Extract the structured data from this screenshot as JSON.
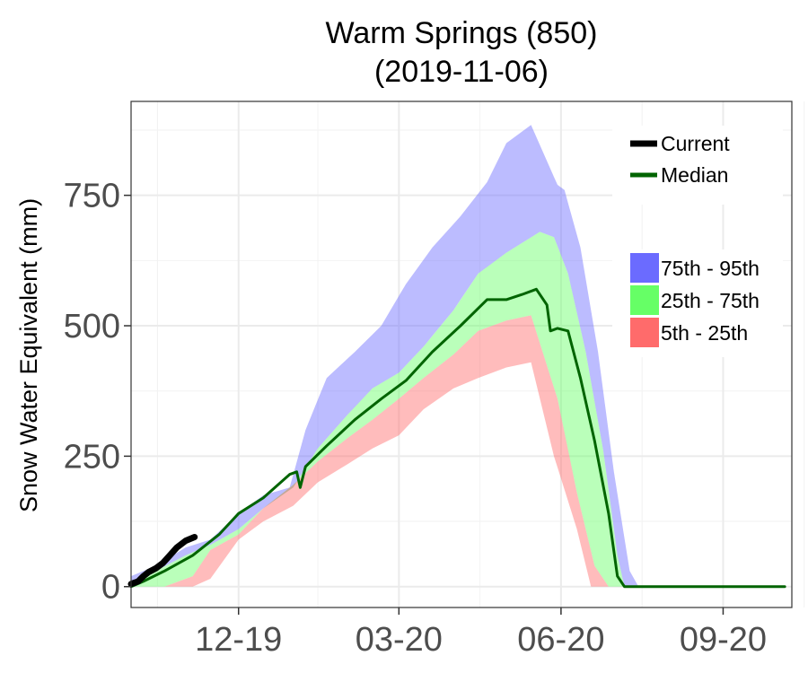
{
  "chart_data": {
    "type": "area",
    "title": "Warm Springs (850)",
    "subtitle": "(2019-11-06)",
    "ylabel": "Snow Water Equivalent (mm)",
    "xlabel": "",
    "x_axis": {
      "min": "2019-10-01",
      "max": "2020-10-10"
    },
    "ylim": [
      -40,
      930
    ],
    "x_ticks": [
      {
        "date": "2019-12-01",
        "label": "12-19"
      },
      {
        "date": "2020-03-01",
        "label": "03-20"
      },
      {
        "date": "2020-06-01",
        "label": "06-20"
      },
      {
        "date": "2020-09-01",
        "label": "09-20"
      }
    ],
    "y_ticks": [
      {
        "value": 0,
        "label": "0"
      },
      {
        "value": 250,
        "label": "250"
      },
      {
        "value": 500,
        "label": "500"
      },
      {
        "value": 750,
        "label": "750"
      }
    ],
    "grid": true,
    "legend_position": "top-right",
    "legend": {
      "lines": [
        {
          "label": "Current",
          "color": "#000000"
        },
        {
          "label": "Median",
          "color": "#006400"
        }
      ],
      "bands": [
        {
          "label": "75th - 95th",
          "color": "#6b6bff"
        },
        {
          "label": "25th - 75th",
          "color": "#66ff66"
        },
        {
          "label": "5th - 25th",
          "color": "#ff6b6b"
        }
      ]
    },
    "bands": {
      "p95": [
        [
          "2019-10-01",
          20
        ],
        [
          "2019-10-15",
          40
        ],
        [
          "2019-11-01",
          75
        ],
        [
          "2019-11-15",
          90
        ],
        [
          "2019-12-01",
          140
        ],
        [
          "2019-12-15",
          175
        ],
        [
          "2019-12-30",
          190
        ],
        [
          "2020-01-08",
          300
        ],
        [
          "2020-01-20",
          400
        ],
        [
          "2020-02-05",
          450
        ],
        [
          "2020-02-20",
          500
        ],
        [
          "2020-03-05",
          580
        ],
        [
          "2020-03-20",
          650
        ],
        [
          "2020-04-05",
          710
        ],
        [
          "2020-04-20",
          775
        ],
        [
          "2020-05-01",
          850
        ],
        [
          "2020-05-15",
          885
        ],
        [
          "2020-05-30",
          770
        ],
        [
          "2020-06-03",
          760
        ],
        [
          "2020-06-12",
          650
        ],
        [
          "2020-06-22",
          450
        ],
        [
          "2020-07-01",
          220
        ],
        [
          "2020-07-10",
          30
        ],
        [
          "2020-07-15",
          0
        ],
        [
          "2020-10-06",
          0
        ]
      ],
      "p75": [
        [
          "2019-10-01",
          10
        ],
        [
          "2019-10-15",
          30
        ],
        [
          "2019-11-01",
          60
        ],
        [
          "2019-11-15",
          80
        ],
        [
          "2019-12-01",
          110
        ],
        [
          "2019-12-15",
          150
        ],
        [
          "2020-01-01",
          190
        ],
        [
          "2020-01-15",
          265
        ],
        [
          "2020-02-01",
          330
        ],
        [
          "2020-02-15",
          380
        ],
        [
          "2020-03-01",
          410
        ],
        [
          "2020-03-15",
          460
        ],
        [
          "2020-04-01",
          530
        ],
        [
          "2020-04-15",
          600
        ],
        [
          "2020-05-01",
          640
        ],
        [
          "2020-05-20",
          680
        ],
        [
          "2020-05-28",
          670
        ],
        [
          "2020-06-05",
          600
        ],
        [
          "2020-06-15",
          450
        ],
        [
          "2020-06-25",
          260
        ],
        [
          "2020-07-03",
          60
        ],
        [
          "2020-07-07",
          0
        ],
        [
          "2020-10-06",
          0
        ]
      ],
      "p25": [
        [
          "2019-10-01",
          0
        ],
        [
          "2019-10-20",
          0
        ],
        [
          "2019-11-05",
          20
        ],
        [
          "2019-11-15",
          70
        ],
        [
          "2019-12-01",
          100
        ],
        [
          "2019-12-15",
          150
        ],
        [
          "2020-01-01",
          195
        ],
        [
          "2020-01-15",
          240
        ],
        [
          "2020-02-01",
          285
        ],
        [
          "2020-02-15",
          320
        ],
        [
          "2020-03-01",
          360
        ],
        [
          "2020-03-15",
          400
        ],
        [
          "2020-04-01",
          445
        ],
        [
          "2020-04-15",
          490
        ],
        [
          "2020-05-01",
          510
        ],
        [
          "2020-05-15",
          520
        ],
        [
          "2020-05-30",
          360
        ],
        [
          "2020-06-10",
          180
        ],
        [
          "2020-06-20",
          40
        ],
        [
          "2020-06-28",
          0
        ],
        [
          "2020-10-06",
          0
        ]
      ],
      "p5": [
        [
          "2019-10-01",
          0
        ],
        [
          "2019-11-05",
          0
        ],
        [
          "2019-11-15",
          15
        ],
        [
          "2019-12-01",
          90
        ],
        [
          "2019-12-15",
          125
        ],
        [
          "2020-01-01",
          155
        ],
        [
          "2020-01-15",
          200
        ],
        [
          "2020-02-01",
          235
        ],
        [
          "2020-02-15",
          265
        ],
        [
          "2020-03-01",
          290
        ],
        [
          "2020-03-15",
          340
        ],
        [
          "2020-04-01",
          380
        ],
        [
          "2020-04-15",
          400
        ],
        [
          "2020-05-01",
          420
        ],
        [
          "2020-05-15",
          430
        ],
        [
          "2020-05-28",
          250
        ],
        [
          "2020-06-10",
          110
        ],
        [
          "2020-06-18",
          0
        ],
        [
          "2020-10-06",
          0
        ]
      ]
    },
    "series": [
      {
        "name": "Current",
        "color": "#000000",
        "points": [
          [
            "2019-10-01",
            5
          ],
          [
            "2019-10-05",
            10
          ],
          [
            "2019-10-08",
            20
          ],
          [
            "2019-10-11",
            28
          ],
          [
            "2019-10-15",
            35
          ],
          [
            "2019-10-19",
            45
          ],
          [
            "2019-10-23",
            60
          ],
          [
            "2019-10-27",
            75
          ],
          [
            "2019-11-01",
            88
          ],
          [
            "2019-11-06",
            95
          ]
        ]
      },
      {
        "name": "Median",
        "color": "#006400",
        "points": [
          [
            "2019-10-01",
            0
          ],
          [
            "2019-10-08",
            10
          ],
          [
            "2019-10-20",
            30
          ],
          [
            "2019-11-05",
            60
          ],
          [
            "2019-11-20",
            100
          ],
          [
            "2019-12-01",
            140
          ],
          [
            "2019-12-15",
            170
          ],
          [
            "2019-12-30",
            215
          ],
          [
            "2020-01-03",
            220
          ],
          [
            "2020-01-05",
            190
          ],
          [
            "2020-01-08",
            230
          ],
          [
            "2020-01-20",
            270
          ],
          [
            "2020-02-05",
            320
          ],
          [
            "2020-02-20",
            360
          ],
          [
            "2020-03-05",
            395
          ],
          [
            "2020-03-20",
            450
          ],
          [
            "2020-04-05",
            500
          ],
          [
            "2020-04-20",
            550
          ],
          [
            "2020-05-01",
            550
          ],
          [
            "2020-05-10",
            560
          ],
          [
            "2020-05-18",
            570
          ],
          [
            "2020-05-24",
            540
          ],
          [
            "2020-05-26",
            490
          ],
          [
            "2020-05-30",
            495
          ],
          [
            "2020-06-05",
            490
          ],
          [
            "2020-06-12",
            400
          ],
          [
            "2020-06-20",
            280
          ],
          [
            "2020-06-28",
            140
          ],
          [
            "2020-07-03",
            20
          ],
          [
            "2020-07-07",
            0
          ],
          [
            "2020-10-06",
            0
          ]
        ]
      }
    ]
  }
}
